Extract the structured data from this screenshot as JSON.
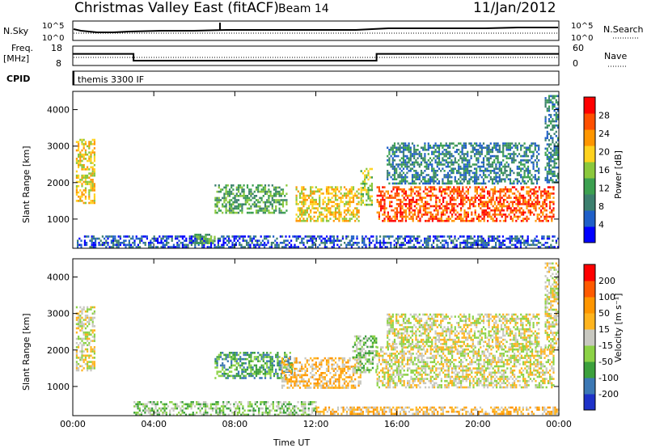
{
  "header": {
    "station": "Christmas Valley East (fitACF)",
    "beam": "Beam 14",
    "date": "11/Jan/2012"
  },
  "top_panels": {
    "nsky_label": "N.Sky",
    "nsky_ticks": [
      "10^5",
      "10^0"
    ],
    "nsearch_label": "N.Search",
    "nsearch_ticks": [
      "10^5",
      "10^0"
    ],
    "freq_label": "Freq.",
    "freq_unit": "[MHz]",
    "freq_ticks": [
      "18",
      "8"
    ],
    "nave_label": "Nave",
    "nave_ticks": [
      "60",
      "0"
    ],
    "cpid_label": "CPID",
    "cpid_text": "themis 3300 IF",
    "freq_steps": [
      {
        "t_start": 0,
        "t_end": 3,
        "mhz": 14.0
      },
      {
        "t_start": 3,
        "t_end": 15,
        "mhz": 10.5
      },
      {
        "t_start": 15,
        "t_end": 24,
        "mhz": 14.0
      }
    ]
  },
  "chart_data": [
    {
      "type": "heatmap",
      "name": "power",
      "xlabel": "",
      "ylabel": "Slant Range [km]",
      "xlim": [
        0,
        24
      ],
      "ylim": [
        200,
        4500
      ],
      "yticks": [
        "4000",
        "3000",
        "2000",
        "1000"
      ],
      "colorbar_label": "Power [dB]",
      "colorbar_ticks": [
        "28",
        "24",
        "20",
        "16",
        "12",
        "8",
        "4"
      ],
      "colorbar_colors": [
        "#0000ff",
        "#1f5fc8",
        "#3c7f6e",
        "#3ca050",
        "#8bc83c",
        "#ffd21e",
        "#ff9600",
        "#ff5000",
        "#ff0000"
      ],
      "regions": [
        {
          "t0": 0.15,
          "t1": 1.1,
          "r0": 1450,
          "r1": 3200,
          "level": 5
        },
        {
          "t0": 7.0,
          "t1": 10.6,
          "r0": 1200,
          "r1": 1950,
          "level": 3
        },
        {
          "t0": 11.0,
          "t1": 14.1,
          "r0": 950,
          "r1": 1900,
          "level": 5
        },
        {
          "t0": 14.2,
          "t1": 14.8,
          "r0": 1400,
          "r1": 2400,
          "level": 4
        },
        {
          "t0": 15.0,
          "t1": 23.7,
          "r0": 950,
          "r1": 1900,
          "level": 7
        },
        {
          "t0": 15.5,
          "t1": 23.0,
          "r0": 2000,
          "r1": 3100,
          "level": 2
        },
        {
          "t0": 0.2,
          "t1": 24.0,
          "r0": 220,
          "r1": 550,
          "level": 1
        },
        {
          "t0": 6.0,
          "t1": 7.0,
          "r0": 350,
          "r1": 600,
          "level": 3
        },
        {
          "t0": 23.3,
          "t1": 24.0,
          "r0": 2000,
          "r1": 4400,
          "level": 2
        }
      ]
    },
    {
      "type": "heatmap",
      "name": "velocity",
      "xlabel": "Time UT",
      "ylabel": "Slant Range [km]",
      "xlim": [
        0,
        24
      ],
      "ylim": [
        200,
        4500
      ],
      "xticks": [
        "00:00",
        "04:00",
        "08:00",
        "12:00",
        "16:00",
        "20:00",
        "00:00"
      ],
      "yticks": [
        "4000",
        "3000",
        "2000",
        "1000"
      ],
      "colorbar_label": "Velocity [m s⁻¹]",
      "colorbar_ticks": [
        "200",
        "100",
        "50",
        "15",
        "-15",
        "-50",
        "-100",
        "-200"
      ],
      "colorbar_colors": [
        "#1e32c8",
        "#3c78b4",
        "#3ca03c",
        "#8cd246",
        "#c8c8c0",
        "#ffb41e",
        "#ff9600",
        "#ff5a00",
        "#ff0000"
      ],
      "regions": [
        {
          "t0": 0.15,
          "t1": 1.1,
          "r0": 1450,
          "r1": 3200,
          "level": 4
        },
        {
          "t0": 7.0,
          "t1": 10.8,
          "r0": 1250,
          "r1": 1950,
          "level": 2
        },
        {
          "t0": 10.3,
          "t1": 14.2,
          "r0": 950,
          "r1": 1800,
          "level": 5
        },
        {
          "t0": 13.8,
          "t1": 15.0,
          "r0": 1400,
          "r1": 2400,
          "level": 3
        },
        {
          "t0": 15.0,
          "t1": 23.7,
          "r0": 1000,
          "r1": 2100,
          "level": 4
        },
        {
          "t0": 15.5,
          "t1": 23.0,
          "r0": 2100,
          "r1": 3000,
          "level": 4
        },
        {
          "t0": 3.0,
          "t1": 12.0,
          "r0": 220,
          "r1": 600,
          "level": 3
        },
        {
          "t0": 12.0,
          "t1": 24.0,
          "r0": 220,
          "r1": 450,
          "level": 5
        },
        {
          "t0": 23.3,
          "t1": 24.0,
          "r0": 2000,
          "r1": 4400,
          "level": 4
        }
      ]
    }
  ]
}
